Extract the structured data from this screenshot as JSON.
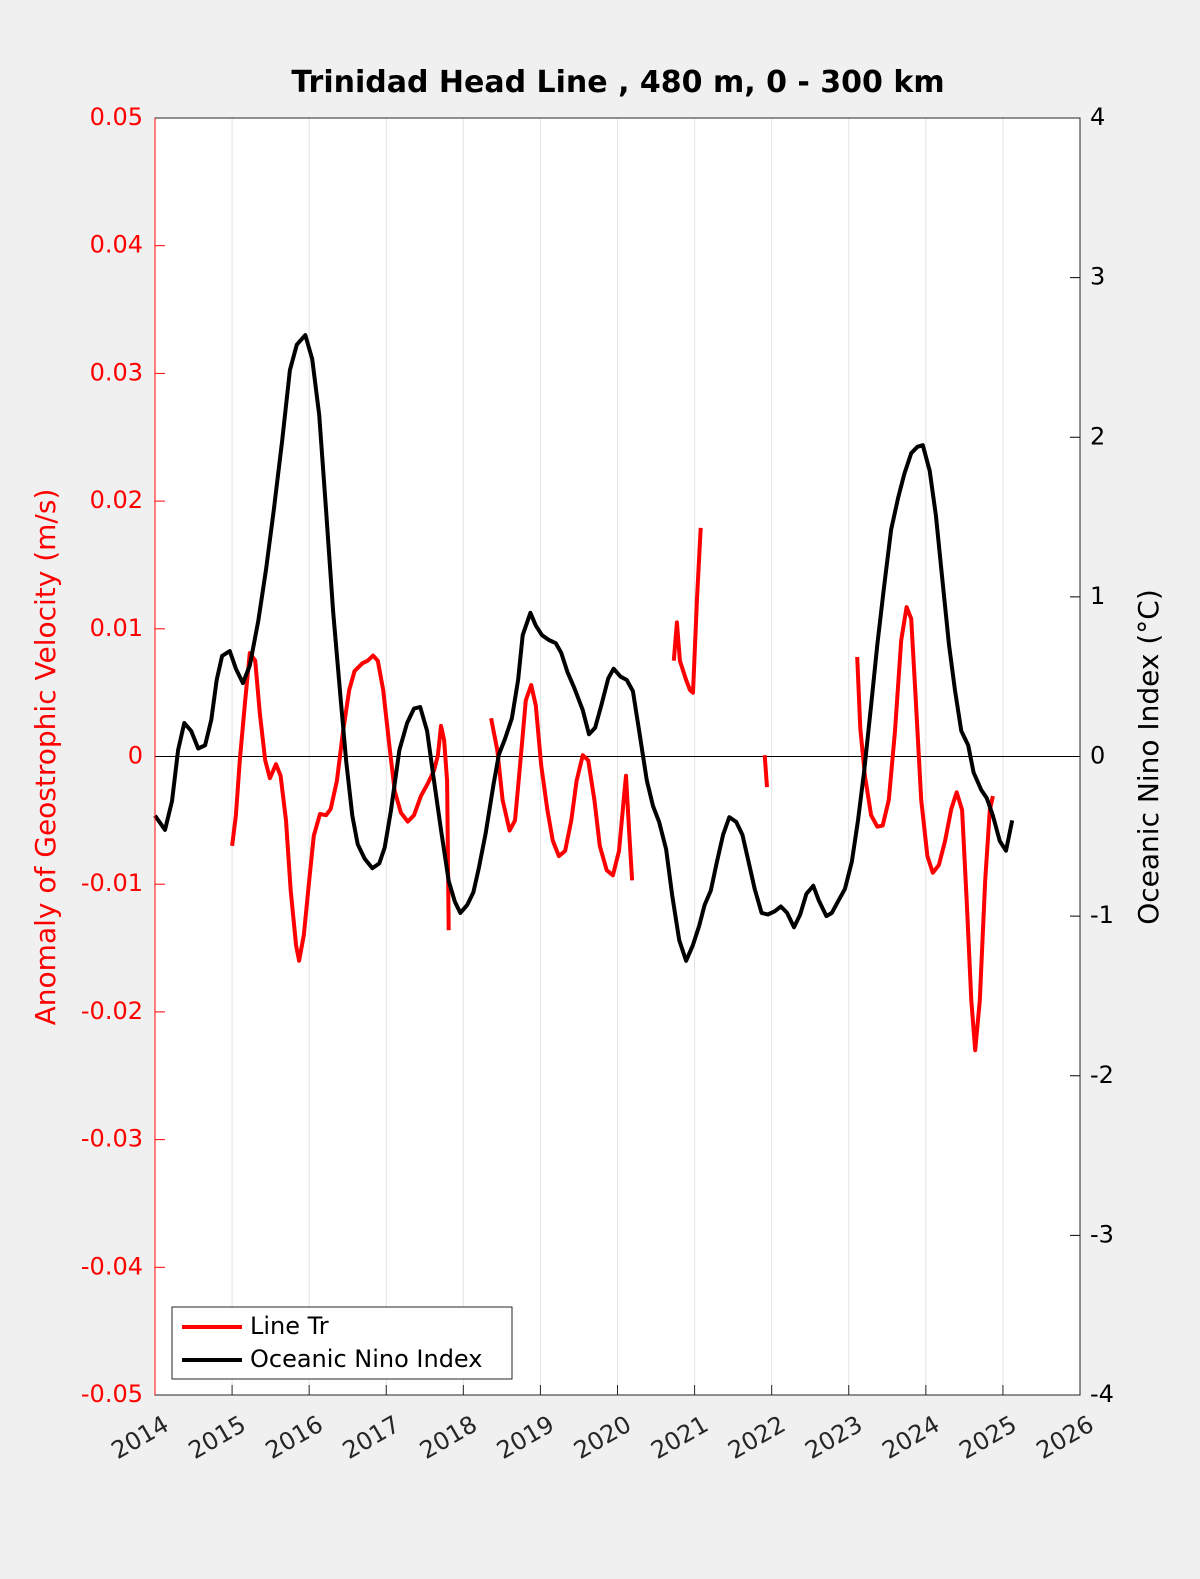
{
  "chart_data": {
    "type": "line",
    "title": "Trinidad Head Line , 480 m, 0 - 300 km",
    "y_label": "Anomaly of Geostrophic Velocity (m/s)",
    "y2_label": "Oceanic Nino Index (°C)",
    "xlim": [
      2014,
      2026
    ],
    "xticks": [
      2014,
      2015,
      2016,
      2017,
      2018,
      2019,
      2020,
      2021,
      2022,
      2023,
      2024,
      2025,
      2026
    ],
    "ylim": [
      -0.05,
      0.05
    ],
    "yticks": [
      -0.05,
      -0.04,
      -0.03,
      -0.02,
      -0.01,
      0,
      0.01,
      0.02,
      0.03,
      0.04,
      0.05
    ],
    "y2lim": [
      -4,
      4
    ],
    "y2ticks": [
      -4,
      -3,
      -2,
      -1,
      0,
      1,
      2,
      3,
      4
    ],
    "grid": true,
    "legend": "lower left",
    "series": [
      {
        "name": "Line Tr",
        "color": "#ff0000",
        "axis": "y",
        "x": [
          2015.0,
          2015.05,
          2015.1,
          2015.17,
          2015.23,
          2015.3,
          2015.36,
          2015.43,
          2015.49,
          2015.57,
          2015.63,
          2015.7,
          2015.76,
          2015.83,
          2015.87,
          2015.93,
          2016.0,
          2016.06,
          2016.14,
          2016.22,
          2016.28,
          2016.36,
          2016.44,
          2016.52,
          2016.59,
          2016.69,
          2016.76,
          2016.83,
          2016.89,
          2016.96,
          2017.04,
          2017.11,
          2017.19,
          2017.28,
          2017.36,
          2017.45,
          2017.54,
          2017.62,
          2017.67,
          2017.71,
          2017.75,
          2017.79,
          2017.81,
          null,
          2018.36,
          2018.44,
          2018.51,
          2018.6,
          2018.67,
          2018.73,
          2018.81,
          2018.88,
          2018.94,
          2019.01,
          2019.09,
          2019.16,
          2019.24,
          2019.32,
          2019.4,
          2019.47,
          2019.55,
          2019.62,
          2019.7,
          2019.77,
          2019.86,
          2019.94,
          2020.02,
          2020.08,
          2020.11,
          2020.15,
          2020.19,
          null,
          2020.73,
          2020.77,
          2020.81,
          2020.89,
          2020.94,
          2020.98,
          2021.03,
          2021.08,
          null,
          2021.91,
          2021.94,
          null,
          2023.11,
          2023.15,
          2023.21,
          2023.29,
          2023.37,
          2023.44,
          2023.52,
          2023.6,
          2023.68,
          2023.75,
          2023.81,
          2023.87,
          2023.94,
          2024.02,
          2024.09,
          2024.17,
          2024.25,
          2024.33,
          2024.4,
          2024.47,
          2024.53,
          2024.59,
          2024.64,
          2024.7,
          2024.77,
          2024.83,
          2024.87
        ],
        "values": [
          -0.007,
          -0.0046,
          -0.0003,
          0.0044,
          0.0081,
          0.0075,
          0.0034,
          -0.0003,
          -0.0017,
          -0.0006,
          -0.0015,
          -0.005,
          -0.0105,
          -0.0148,
          -0.016,
          -0.014,
          -0.0097,
          -0.0062,
          -0.0045,
          -0.0046,
          -0.0041,
          -0.0019,
          0.002,
          0.0052,
          0.0067,
          0.0073,
          0.0075,
          0.0079,
          0.0075,
          0.0052,
          0.0009,
          -0.0027,
          -0.0044,
          -0.0051,
          -0.0046,
          -0.0031,
          -0.0021,
          -0.0011,
          0.0001,
          0.0024,
          0.0013,
          -0.0019,
          -0.0136,
          null,
          0.003,
          0.0005,
          -0.0034,
          -0.0058,
          -0.005,
          -0.0011,
          0.0044,
          0.0056,
          0.004,
          -0.0007,
          -0.0042,
          -0.0066,
          -0.0078,
          -0.0074,
          -0.005,
          -0.0019,
          0.0001,
          -0.0003,
          -0.0034,
          -0.007,
          -0.0089,
          -0.0093,
          -0.0074,
          -0.0034,
          -0.0015,
          -0.0058,
          -0.0097,
          null,
          0.0075,
          0.0105,
          0.0075,
          0.006,
          0.0052,
          0.005,
          0.0122,
          0.0179,
          null,
          0.0001,
          -0.0024,
          null,
          0.0078,
          0.0022,
          -0.0015,
          -0.0046,
          -0.0055,
          -0.0054,
          -0.0034,
          0.002,
          0.0091,
          0.0117,
          0.0108,
          0.0044,
          -0.0034,
          -0.0078,
          -0.0091,
          -0.0085,
          -0.0066,
          -0.0041,
          -0.0028,
          -0.0042,
          -0.0113,
          -0.0191,
          -0.023,
          -0.0191,
          -0.0097,
          -0.0042,
          -0.0031
        ]
      },
      {
        "name": "Oceanic Nino Index",
        "color": "#000000",
        "axis": "y2",
        "x": [
          2014.0,
          2014.13,
          2014.22,
          2014.3,
          2014.38,
          2014.47,
          2014.56,
          2014.65,
          2014.73,
          2014.8,
          2014.87,
          2014.97,
          2015.05,
          2015.14,
          2015.23,
          2015.34,
          2015.44,
          2015.54,
          2015.65,
          2015.75,
          2015.84,
          2015.95,
          2016.04,
          2016.13,
          2016.22,
          2016.31,
          2016.41,
          2016.48,
          2016.56,
          2016.63,
          2016.72,
          2016.82,
          2016.91,
          2016.98,
          2017.06,
          2017.17,
          2017.27,
          2017.36,
          2017.44,
          2017.53,
          2017.61,
          2017.71,
          2017.81,
          2017.89,
          2017.96,
          2018.05,
          2018.13,
          2018.2,
          2018.29,
          2018.39,
          2018.46,
          2018.54,
          2018.63,
          2018.71,
          2018.77,
          2018.87,
          2018.94,
          2019.02,
          2019.11,
          2019.2,
          2019.27,
          2019.35,
          2019.44,
          2019.55,
          2019.63,
          2019.71,
          2019.79,
          2019.88,
          2019.95,
          2020.04,
          2020.12,
          2020.2,
          2020.29,
          2020.38,
          2020.46,
          2020.54,
          2020.63,
          2020.71,
          2020.8,
          2020.89,
          2020.98,
          2021.06,
          2021.13,
          2021.21,
          2021.29,
          2021.37,
          2021.45,
          2021.54,
          2021.62,
          2021.71,
          2021.78,
          2021.87,
          2021.95,
          2022.04,
          2022.12,
          2022.2,
          2022.29,
          2022.37,
          2022.45,
          2022.54,
          2022.61,
          2022.71,
          2022.78,
          2022.87,
          2022.95,
          2023.04,
          2023.12,
          2023.2,
          2023.29,
          2023.37,
          2023.46,
          2023.55,
          2023.64,
          2023.72,
          2023.81,
          2023.89,
          2023.96,
          2024.05,
          2024.13,
          2024.21,
          2024.3,
          2024.38,
          2024.46,
          2024.55,
          2024.62,
          2024.72,
          2024.79,
          2024.87,
          2024.96,
          2025.04,
          2025.12
        ],
        "values": [
          -0.37,
          -0.46,
          -0.28,
          0.04,
          0.21,
          0.16,
          0.05,
          0.07,
          0.23,
          0.48,
          0.63,
          0.66,
          0.55,
          0.46,
          0.57,
          0.85,
          1.17,
          1.54,
          1.98,
          2.42,
          2.58,
          2.64,
          2.49,
          2.14,
          1.54,
          0.91,
          0.35,
          -0.03,
          -0.37,
          -0.55,
          -0.64,
          -0.7,
          -0.67,
          -0.57,
          -0.34,
          0.04,
          0.21,
          0.3,
          0.31,
          0.16,
          -0.12,
          -0.46,
          -0.78,
          -0.91,
          -0.98,
          -0.93,
          -0.85,
          -0.7,
          -0.48,
          -0.18,
          0.01,
          0.11,
          0.24,
          0.48,
          0.76,
          0.9,
          0.82,
          0.76,
          0.73,
          0.71,
          0.65,
          0.53,
          0.43,
          0.29,
          0.14,
          0.18,
          0.32,
          0.49,
          0.55,
          0.5,
          0.48,
          0.41,
          0.13,
          -0.15,
          -0.31,
          -0.41,
          -0.58,
          -0.87,
          -1.15,
          -1.28,
          -1.18,
          -1.06,
          -0.93,
          -0.84,
          -0.66,
          -0.49,
          -0.38,
          -0.41,
          -0.49,
          -0.68,
          -0.83,
          -0.98,
          -0.99,
          -0.97,
          -0.94,
          -0.98,
          -1.07,
          -0.99,
          -0.86,
          -0.81,
          -0.9,
          -1.0,
          -0.98,
          -0.9,
          -0.83,
          -0.66,
          -0.4,
          -0.09,
          0.32,
          0.7,
          1.07,
          1.42,
          1.62,
          1.77,
          1.9,
          1.94,
          1.95,
          1.79,
          1.51,
          1.13,
          0.7,
          0.41,
          0.16,
          0.07,
          -0.1,
          -0.21,
          -0.26,
          -0.37,
          -0.53,
          -0.59,
          -0.4
        ]
      }
    ]
  }
}
